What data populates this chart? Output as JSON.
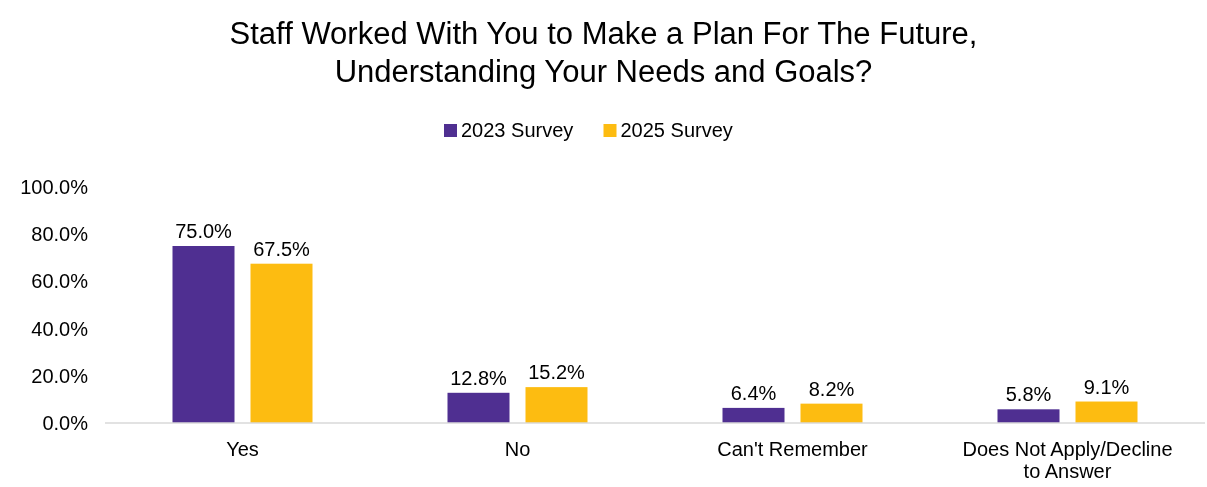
{
  "chart_data": {
    "type": "bar",
    "title": "Staff Worked With You to Make a Plan For The Future,\nUnderstanding Your Needs and Goals?",
    "categories": [
      "Yes",
      "No",
      "Can't Remember",
      "Does Not Apply/Decline to Answer"
    ],
    "series": [
      {
        "name": "2023 Survey",
        "color": "#4f2f91",
        "values": [
          75.0,
          12.8,
          6.4,
          5.8
        ],
        "value_labels": [
          "75.0%",
          "12.8%",
          "6.4%",
          "5.8%"
        ]
      },
      {
        "name": "2025 Survey",
        "color": "#fdbc11",
        "values": [
          67.5,
          15.2,
          8.2,
          9.1
        ],
        "value_labels": [
          "67.5%",
          "15.2%",
          "8.2%",
          "9.1%"
        ]
      }
    ],
    "ylim": [
      0,
      100
    ],
    "yticks": [
      {
        "value": 0,
        "label": "0.0%"
      },
      {
        "value": 20,
        "label": "20.0%"
      },
      {
        "value": 40,
        "label": "40.0%"
      },
      {
        "value": 60,
        "label": "60.0%"
      },
      {
        "value": 80,
        "label": "80.0%"
      },
      {
        "value": 100,
        "label": "100.0%"
      }
    ],
    "legend": "top",
    "grid": false
  }
}
